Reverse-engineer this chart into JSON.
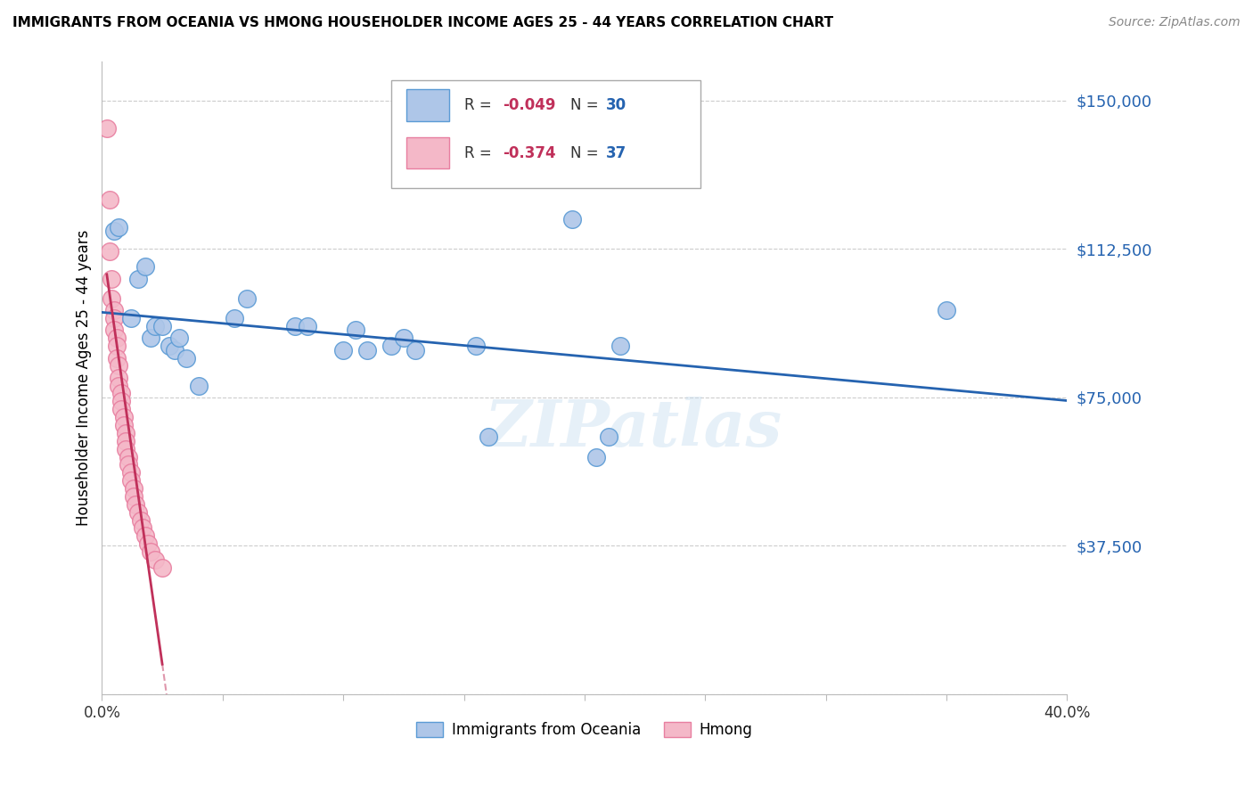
{
  "title": "IMMIGRANTS FROM OCEANIA VS HMONG HOUSEHOLDER INCOME AGES 25 - 44 YEARS CORRELATION CHART",
  "source": "Source: ZipAtlas.com",
  "ylabel": "Householder Income Ages 25 - 44 years",
  "xlim": [
    0.0,
    0.4
  ],
  "ylim": [
    0,
    160000
  ],
  "yticks": [
    0,
    37500,
    75000,
    112500,
    150000
  ],
  "ytick_labels": [
    "",
    "$37,500",
    "$75,000",
    "$112,500",
    "$150,000"
  ],
  "xticks": [
    0.0,
    0.05,
    0.1,
    0.15,
    0.2,
    0.25,
    0.3,
    0.35,
    0.4
  ],
  "xtick_labels": [
    "0.0%",
    "",
    "",
    "",
    "",
    "",
    "",
    "",
    "40.0%"
  ],
  "oceania_color": "#aec6e8",
  "hmong_color": "#f4b8c8",
  "oceania_edge_color": "#5b9bd5",
  "hmong_edge_color": "#e87fa0",
  "regression_oceania_color": "#2563b0",
  "regression_hmong_color": "#c0305a",
  "legend_R_oceania": "-0.049",
  "legend_N_oceania": "30",
  "legend_R_hmong": "-0.374",
  "legend_N_hmong": "37",
  "watermark": "ZIPatlas",
  "oceania_x": [
    0.005,
    0.007,
    0.012,
    0.015,
    0.018,
    0.02,
    0.022,
    0.025,
    0.028,
    0.03,
    0.032,
    0.035,
    0.04,
    0.055,
    0.06,
    0.08,
    0.085,
    0.1,
    0.105,
    0.11,
    0.12,
    0.125,
    0.13,
    0.155,
    0.16,
    0.195,
    0.205,
    0.21,
    0.215,
    0.35
  ],
  "oceania_y": [
    117000,
    118000,
    95000,
    105000,
    108000,
    90000,
    93000,
    93000,
    88000,
    87000,
    90000,
    85000,
    78000,
    95000,
    100000,
    93000,
    93000,
    87000,
    92000,
    87000,
    88000,
    90000,
    87000,
    88000,
    65000,
    120000,
    60000,
    65000,
    88000,
    97000
  ],
  "hmong_x": [
    0.002,
    0.003,
    0.003,
    0.004,
    0.004,
    0.005,
    0.005,
    0.005,
    0.006,
    0.006,
    0.006,
    0.007,
    0.007,
    0.007,
    0.008,
    0.008,
    0.008,
    0.009,
    0.009,
    0.01,
    0.01,
    0.01,
    0.011,
    0.011,
    0.012,
    0.012,
    0.013,
    0.013,
    0.014,
    0.015,
    0.016,
    0.017,
    0.018,
    0.019,
    0.02,
    0.022,
    0.025
  ],
  "hmong_y": [
    143000,
    125000,
    112000,
    105000,
    100000,
    97000,
    95000,
    92000,
    90000,
    88000,
    85000,
    83000,
    80000,
    78000,
    76000,
    74000,
    72000,
    70000,
    68000,
    66000,
    64000,
    62000,
    60000,
    58000,
    56000,
    54000,
    52000,
    50000,
    48000,
    46000,
    44000,
    42000,
    40000,
    38000,
    36000,
    34000,
    32000
  ]
}
